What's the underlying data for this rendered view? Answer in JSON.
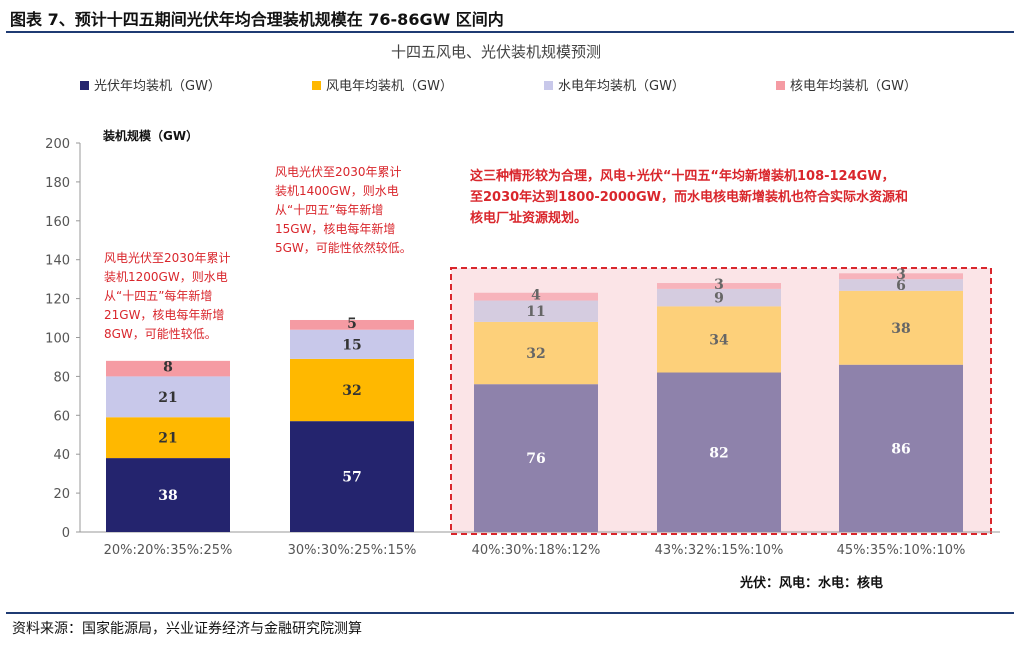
{
  "figure_title": "图表 7、预计十四五期间光伏年均合理装机规模在 76-86GW 区间内",
  "source": "资料来源：国家能源局，兴业证券经济与金融研究院测算",
  "colors": {
    "solar": "#24246e",
    "solar_highlight": "#8e82ab",
    "wind": "#ffb800",
    "wind_highlight": "#fdd07a",
    "hydro": "#c8c8ea",
    "hydro_highlight": "#d5cce0",
    "nuclear": "#f59ba3",
    "nuclear_highlight": "#f7b3bb",
    "annotation": "#d9262c",
    "highlight_box_fill": "#fbe4e7"
  },
  "notes": {
    "note1": [
      "风电光伏至2030年累计",
      "装机1200GW，则水电",
      "从“十四五”每年新增",
      "21GW，核电每年新增",
      "8GW，可能性较低。"
    ],
    "note2": [
      "风电光伏至2030年累计",
      "装机1400GW，则水电",
      "从“十四五”每年新增",
      "15GW，核电每年新增",
      "5GW，可能性依然较低。"
    ],
    "note3": [
      "这三种情形较为合理，风电+光伏“十四五“年均新增装机108-124GW，",
      "至2030年达到1800-2000GW，而水电核电新增装机也符合实际水资源和",
      "核电厂址资源规划。"
    ]
  },
  "footer_label": "光伏：风电：水电：核电",
  "chart_data": {
    "type": "bar",
    "stacked": true,
    "title": "十四五风电、光伏装机规模预测",
    "ylabel": "装机规模（GW）",
    "xlabel": "",
    "ylim": [
      0,
      200
    ],
    "yticks": [
      0,
      20,
      40,
      60,
      80,
      100,
      120,
      140,
      160,
      180,
      200
    ],
    "grid": false,
    "legend_position": "top",
    "categories": [
      "20%:20%:35%:25%",
      "30%:30%:25%:15%",
      "40%:30%:18%:12%",
      "43%:32%:15%:10%",
      "45%:35%:10%:10%"
    ],
    "series": [
      {
        "name": "光伏年均装机（GW）",
        "values": [
          38,
          57,
          76,
          82,
          86
        ]
      },
      {
        "name": "风电年均装机（GW）",
        "values": [
          21,
          32,
          32,
          34,
          38
        ]
      },
      {
        "name": "水电年均装机（GW）",
        "values": [
          21,
          15,
          11,
          9,
          6
        ]
      },
      {
        "name": "核电年均装机（GW）",
        "values": [
          8,
          5,
          4,
          3,
          3
        ]
      }
    ],
    "highlighted_categories": [
      2,
      3,
      4
    ]
  }
}
